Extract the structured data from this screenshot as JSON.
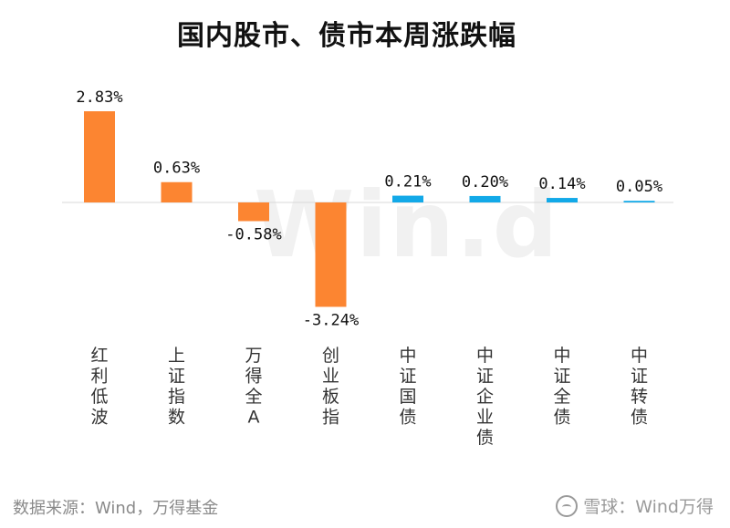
{
  "chart_data": {
    "type": "bar",
    "title": "国内股市、债市本周涨跌幅",
    "categories": [
      "红利低波",
      "上证指数",
      "万得全A",
      "创业板指",
      "中证国债",
      "中证企业债",
      "中证全债",
      "中证转债"
    ],
    "values": [
      2.83,
      0.63,
      -0.58,
      -3.24,
      0.21,
      0.2,
      0.14,
      0.05
    ],
    "data_labels": [
      "2.83%",
      "0.63%",
      "-0.58%",
      "-3.24%",
      "0.21%",
      "0.20%",
      "0.14%",
      "0.05%"
    ],
    "bar_colors": [
      "#fc8531",
      "#fc8531",
      "#fc8531",
      "#fc8531",
      "#12a9e8",
      "#12a9e8",
      "#12a9e8",
      "#12a9e8"
    ],
    "ylim": [
      -3.24,
      2.83
    ],
    "grid": false,
    "legend": "none"
  },
  "watermark": "Win.d",
  "footer": {
    "source": "数据来源：Wind，万得基金",
    "brand": "雪球：Wind万得"
  }
}
